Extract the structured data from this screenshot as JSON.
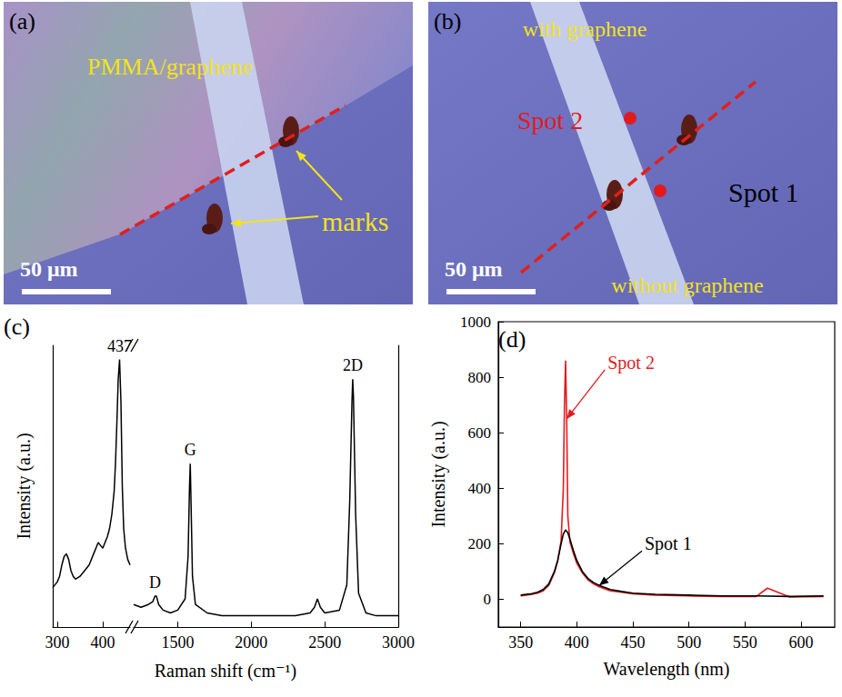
{
  "images": [
    {
      "panel": "(a)",
      "labels": [
        "PMMA/graphene",
        "marks"
      ],
      "scale_bar": "50 μm"
    },
    {
      "panel": "(b)",
      "labels": [
        "with graphene",
        "without graphene"
      ],
      "spots": [
        {
          "text": "Spot 2",
          "color": "#e31a1c"
        },
        {
          "text": "Spot 1",
          "color": "#000000"
        }
      ],
      "scale_bar": "50 μm"
    }
  ],
  "chart_data": [
    {
      "panel": "(c)",
      "type": "line",
      "x_label": "Raman shift (cm⁻¹)",
      "y_label": "Intensity (a.u.)",
      "color": "#000000",
      "ylim": [
        0,
        100
      ],
      "tick_labels": "x",
      "segments": [
        {
          "xlim": [
            290,
            460
          ],
          "xticks": [
            300,
            400
          ],
          "x": [
            290,
            300,
            305,
            310,
            315,
            320,
            325,
            330,
            335,
            340,
            350,
            360,
            370,
            380,
            385,
            390,
            395,
            400,
            405,
            410,
            415,
            420,
            425,
            428,
            431,
            434,
            437,
            440,
            443,
            446,
            450,
            455,
            460
          ],
          "values": [
            14,
            16,
            18,
            22,
            25,
            26,
            24,
            20,
            18,
            17,
            18,
            20,
            22,
            26,
            28,
            30,
            29,
            28,
            30,
            32,
            35,
            40,
            48,
            58,
            72,
            88,
            95,
            80,
            50,
            35,
            28,
            24,
            22
          ]
        },
        {
          "xlim": [
            1200,
            3000
          ],
          "xticks": [
            1500,
            2000,
            2500,
            3000
          ],
          "x": [
            1200,
            1250,
            1300,
            1330,
            1345,
            1355,
            1370,
            1400,
            1450,
            1500,
            1550,
            1570,
            1580,
            1585,
            1590,
            1600,
            1620,
            1700,
            1800,
            1900,
            2000,
            2100,
            2200,
            2300,
            2400,
            2430,
            2450,
            2470,
            2500,
            2600,
            2650,
            2670,
            2685,
            2690,
            2695,
            2710,
            2730,
            2780,
            2850,
            2950,
            3000
          ],
          "values": [
            8,
            7,
            8,
            9,
            11,
            11,
            8,
            6,
            5,
            6,
            10,
            25,
            50,
            58,
            45,
            18,
            8,
            5,
            4,
            4,
            4,
            4,
            4,
            4,
            5,
            7,
            10,
            7,
            5,
            6,
            15,
            45,
            80,
            88,
            82,
            40,
            12,
            5,
            4,
            4,
            4
          ]
        }
      ],
      "annotations": [
        {
          "text": "437",
          "x": 437
        },
        {
          "text": "D",
          "x": 1350
        },
        {
          "text": "G",
          "x": 1585
        },
        {
          "text": "2D",
          "x": 2690
        }
      ]
    },
    {
      "panel": "(d)",
      "type": "line",
      "x_label": "Wavelength (nm)",
      "y_label": "Intensity (a.u.)",
      "xlim": [
        330,
        630
      ],
      "xticks": [
        350,
        400,
        450,
        500,
        550,
        600
      ],
      "ylim": [
        -100,
        1000
      ],
      "yticks": [
        0,
        200,
        400,
        600,
        800,
        1000
      ],
      "series": [
        {
          "name": "Spot 2",
          "color": "#e31a1c",
          "x": [
            350,
            355,
            360,
            365,
            370,
            375,
            380,
            383,
            386,
            388,
            389,
            390,
            391,
            392,
            394,
            397,
            400,
            405,
            410,
            415,
            420,
            430,
            440,
            450,
            470,
            500,
            530,
            560,
            570,
            590,
            620
          ],
          "values": [
            12,
            15,
            18,
            22,
            30,
            50,
            95,
            140,
            210,
            400,
            700,
            860,
            650,
            300,
            205,
            165,
            130,
            95,
            70,
            55,
            45,
            30,
            25,
            20,
            15,
            12,
            10,
            10,
            40,
            8,
            10
          ]
        },
        {
          "name": "Spot 1",
          "color": "#000000",
          "x": [
            350,
            355,
            360,
            365,
            370,
            375,
            380,
            383,
            386,
            388,
            390,
            392,
            394,
            397,
            400,
            405,
            410,
            415,
            420,
            430,
            440,
            450,
            470,
            500,
            530,
            560,
            590,
            620
          ],
          "values": [
            15,
            18,
            20,
            25,
            35,
            55,
            100,
            140,
            200,
            235,
            250,
            240,
            215,
            175,
            140,
            100,
            75,
            60,
            50,
            35,
            28,
            22,
            18,
            15,
            12,
            12,
            10,
            12
          ]
        }
      ],
      "annotations": [
        {
          "series": "Spot 2",
          "x": 391
        },
        {
          "series": "Spot 1",
          "x": 420
        }
      ]
    }
  ]
}
